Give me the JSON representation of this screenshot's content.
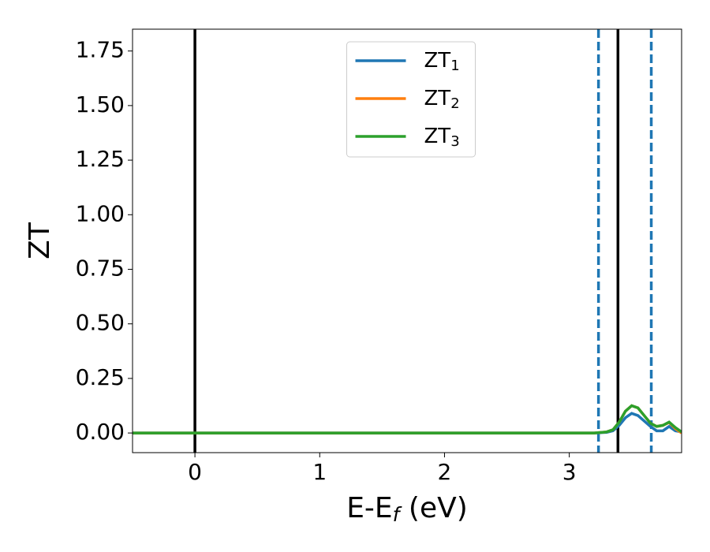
{
  "chart_data": {
    "type": "line",
    "xlabel": "E-Ef (eV)",
    "ylabel": "ZT",
    "x": [
      -0.5,
      0,
      0.5,
      1,
      1.5,
      2,
      2.5,
      3,
      3.2,
      3.3,
      3.35,
      3.4,
      3.45,
      3.5,
      3.55,
      3.6,
      3.65,
      3.7,
      3.75,
      3.8,
      3.85,
      3.9
    ],
    "series": [
      {
        "name": "ZT1",
        "color": "#1f77b4",
        "values": [
          0,
          0,
          0,
          0,
          0,
          0,
          0,
          0,
          0,
          0.003,
          0.01,
          0.035,
          0.07,
          0.09,
          0.08,
          0.055,
          0.03,
          0.01,
          0.01,
          0.03,
          0.01,
          0.005
        ]
      },
      {
        "name": "ZT2",
        "color": "#ff7f0e",
        "values": [
          0,
          0,
          0,
          0,
          0,
          0,
          0,
          0,
          0,
          0.005,
          0.015,
          0.05,
          0.1,
          0.125,
          0.115,
          0.08,
          0.045,
          0.03,
          0.035,
          0.048,
          0.02,
          0.0
        ]
      },
      {
        "name": "ZT3",
        "color": "#2ca02c",
        "values": [
          0,
          0,
          0,
          0,
          0,
          0,
          0,
          0,
          0,
          0.005,
          0.015,
          0.05,
          0.1,
          0.125,
          0.115,
          0.08,
          0.045,
          0.03,
          0.035,
          0.05,
          0.025,
          0.005
        ]
      }
    ],
    "vlines": [
      {
        "x": 0,
        "color": "#000000",
        "style": "solid"
      },
      {
        "x": 3.39,
        "color": "#000000",
        "style": "solid"
      },
      {
        "x": 3.234,
        "color": "#1f77b4",
        "style": "dashed"
      },
      {
        "x": 3.657,
        "color": "#1f77b4",
        "style": "dashed"
      }
    ],
    "xlim": [
      -0.5,
      3.9
    ],
    "ylim": [
      -0.09,
      1.85
    ],
    "xticks": [
      0,
      1,
      2,
      3
    ],
    "yticks": [
      {
        "value": 0,
        "label": "0.00"
      },
      {
        "value": 0.25,
        "label": "0.25"
      },
      {
        "value": 0.5,
        "label": "0.50"
      },
      {
        "value": 0.75,
        "label": "0.75"
      },
      {
        "value": 1,
        "label": "1.00"
      },
      {
        "value": 1.25,
        "label": "1.25"
      },
      {
        "value": 1.5,
        "label": "1.50"
      },
      {
        "value": 1.75,
        "label": "1.75"
      }
    ],
    "legend": "upper center"
  }
}
